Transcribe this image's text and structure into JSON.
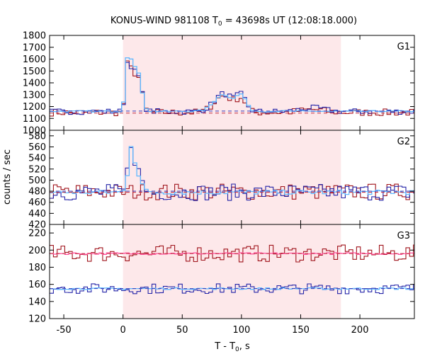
{
  "chart_data": {
    "type": "line",
    "title": {
      "prefix": "KONUS-WIND 981108 T",
      "subscript": "0",
      "suffix": " = 43698s UT (12:08:18.000)"
    },
    "xlabel": {
      "prefix": "T - T",
      "subscript": "0",
      "suffix": ", s"
    },
    "ylabel": "counts / sec",
    "xlim": [
      -62,
      246
    ],
    "xticks": [
      -50,
      0,
      50,
      100,
      150,
      200
    ],
    "shaded_interval": [
      0,
      184
    ],
    "colors": {
      "shade": "#fde8ea",
      "dark_red": "#a0141c",
      "dark_blue": "#2424a8",
      "light_blue": "#5fb8ff",
      "pink": "#ff4f9a",
      "dashed_red": "#c0283c",
      "dashed_blue": "#3838b8"
    },
    "panels": [
      {
        "label": "G1",
        "ylim": [
          1000,
          1800
        ],
        "yticks": [
          1000,
          1100,
          1200,
          1300,
          1400,
          1500,
          1600,
          1700,
          1800
        ],
        "background_levels": [
          1145,
          1162
        ],
        "series": [
          {
            "color": "dark_red",
            "bin": 3.2,
            "start": -62,
            "base": 1150,
            "noise": 30,
            "bumps": [
              [
                7,
                1480,
                2.5
              ],
              [
                3,
                300,
                1.5
              ],
              [
                13,
                280,
                3
              ],
              [
                85,
                140,
                8
              ],
              [
                100,
                100,
                4
              ],
              [
                160,
                25,
                10
              ]
            ]
          },
          {
            "color": "dark_blue",
            "bin": 3.2,
            "start": -62,
            "base": 1158,
            "noise": 25,
            "bumps": [
              [
                7,
                1500,
                2.5
              ],
              [
                3,
                300,
                1.5
              ],
              [
                13,
                280,
                3
              ],
              [
                85,
                150,
                8
              ],
              [
                100,
                120,
                4
              ],
              [
                160,
                30,
                10
              ]
            ]
          },
          {
            "color": "light_blue",
            "bin": 3.2,
            "start": -62,
            "base": 1160,
            "noise": 6,
            "bumps": [
              [
                7,
                1560,
                2.5
              ],
              [
                3,
                320,
                1.5
              ],
              [
                13,
                300,
                3
              ],
              [
                85,
                140,
                8
              ],
              [
                100,
                120,
                4
              ]
            ]
          }
        ]
      },
      {
        "label": "G2",
        "ylim": [
          420,
          590
        ],
        "yticks": [
          420,
          440,
          460,
          480,
          500,
          520,
          540,
          560,
          580
        ],
        "background_levels": [
          478,
          480
        ],
        "series": [
          {
            "color": "dark_red",
            "bin": 3.2,
            "start": -62,
            "base": 479,
            "noise": 15,
            "bumps": []
          },
          {
            "color": "dark_blue",
            "bin": 3.2,
            "start": -62,
            "base": 478,
            "noise": 15,
            "bumps": [
              [
                7,
                565,
                2.5
              ],
              [
                13,
                510,
                3
              ]
            ]
          },
          {
            "color": "light_blue",
            "bin": 3.2,
            "start": -62,
            "base": 478,
            "noise": 4,
            "bumps": [
              [
                7,
                560,
                2.5
              ],
              [
                13,
                505,
                3
              ]
            ]
          }
        ]
      },
      {
        "label": "G3",
        "ylim": [
          120,
          230
        ],
        "yticks": [
          120,
          140,
          160,
          180,
          200,
          220
        ],
        "background_levels": [
          196,
          155
        ],
        "series": [
          {
            "color": "dark_red",
            "bin": 3.2,
            "start": -62,
            "base": 196,
            "noise": 10,
            "bumps": []
          },
          {
            "color": "pink",
            "bin": 3.2,
            "start": -62,
            "base": 196,
            "noise": 1,
            "bumps": []
          },
          {
            "color": "dark_blue",
            "bin": 3.2,
            "start": -62,
            "base": 155,
            "noise": 6,
            "bumps": []
          },
          {
            "color": "light_blue",
            "bin": 3.2,
            "start": -62,
            "base": 155,
            "noise": 1,
            "bumps": []
          }
        ]
      }
    ]
  }
}
